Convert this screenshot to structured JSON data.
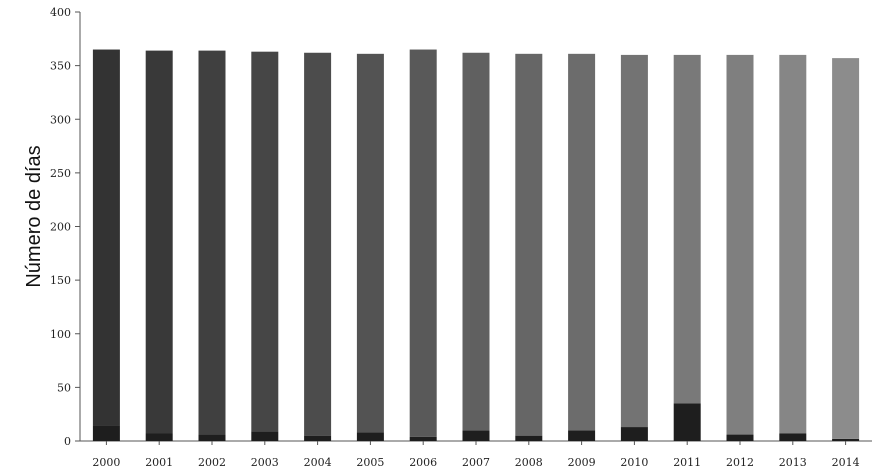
{
  "chart_data": {
    "type": "bar",
    "stacked": true,
    "ylabel": "Número de días",
    "xlabel": "",
    "title": "",
    "ylim": [
      0,
      400
    ],
    "yticks": [
      0,
      50,
      100,
      150,
      200,
      250,
      300,
      350,
      400
    ],
    "grid": false,
    "legend": "none",
    "categories": [
      "2000",
      "2001",
      "2002",
      "2003",
      "2004",
      "2005",
      "2006",
      "2007",
      "2008",
      "2009",
      "2010",
      "2011",
      "2012",
      "2013",
      "2014"
    ],
    "series": [
      {
        "values": [
          14,
          7,
          6,
          9,
          5,
          8,
          4,
          10,
          5,
          10,
          13,
          35,
          6,
          7,
          2
        ],
        "color": "#1e1e1e"
      },
      {
        "values": [
          351,
          357,
          358,
          354,
          357,
          353,
          361,
          352,
          356,
          351,
          347,
          325,
          354,
          353,
          355
        ],
        "color": "#4a4a4a"
      }
    ],
    "colors": {
      "bottom_segment": "#1e1e1e",
      "bar_dark": "#333333",
      "bar_light": "#8c8c8c"
    }
  }
}
